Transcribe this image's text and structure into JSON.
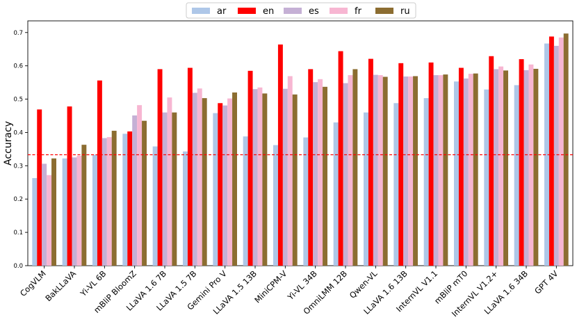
{
  "chart_data": {
    "type": "bar",
    "title": "",
    "xlabel": "",
    "ylabel": "Accuracy",
    "ylim": [
      0,
      0.735
    ],
    "yticks": [
      "0.0",
      "0.1",
      "0.2",
      "0.3",
      "0.4",
      "0.5",
      "0.6",
      "0.7"
    ],
    "reference_line": {
      "y": 0.333,
      "color": "#ff0000",
      "style": "dashed"
    },
    "legend_position": "top-center",
    "grid": false,
    "categories": [
      "CogVLM",
      "BakLLaVA",
      "Yi-VL 6B",
      "mBliP BloomZ",
      "LLaVA 1.6 7B",
      "LLaVA 1.5 7B",
      "Gemini Pro V",
      "LLaVA 1.5 13B",
      "MiniCPM-V",
      "Yi-VL 34B",
      "OmniLMM 12B",
      "Qwen-VL",
      "LLaVA 1.6 13B",
      "InternVL V1.1",
      "mBliP mT0",
      "InternVL V1.2+",
      "LLaVA 1.6 34B",
      "GPT 4V"
    ],
    "series": [
      {
        "name": "ar",
        "color": "#aec7e8",
        "values": [
          0.263,
          0.322,
          0.333,
          0.396,
          0.358,
          0.343,
          0.458,
          0.388,
          0.362,
          0.385,
          0.43,
          0.46,
          0.488,
          0.503,
          0.553,
          0.529,
          0.542,
          0.667
        ]
      },
      {
        "name": "en",
        "color": "#ff0000",
        "values": [
          0.469,
          0.478,
          0.556,
          0.403,
          0.59,
          0.594,
          0.488,
          0.585,
          0.664,
          0.59,
          0.644,
          0.621,
          0.608,
          0.61,
          0.594,
          0.629,
          0.62,
          0.688
        ]
      },
      {
        "name": "es",
        "color": "#c5b0d5",
        "values": [
          0.306,
          0.325,
          0.383,
          0.451,
          0.46,
          0.519,
          0.481,
          0.53,
          0.531,
          0.551,
          0.548,
          0.573,
          0.568,
          0.572,
          0.562,
          0.59,
          0.587,
          0.66
        ]
      },
      {
        "name": "fr",
        "color": "#f7b6d2",
        "values": [
          0.272,
          0.33,
          0.386,
          0.482,
          0.505,
          0.532,
          0.502,
          0.535,
          0.569,
          0.56,
          0.572,
          0.572,
          0.568,
          0.572,
          0.576,
          0.598,
          0.604,
          0.685
        ]
      },
      {
        "name": "ru",
        "color": "#8c6d31",
        "values": [
          0.322,
          0.363,
          0.405,
          0.435,
          0.46,
          0.503,
          0.52,
          0.517,
          0.514,
          0.537,
          0.59,
          0.567,
          0.569,
          0.574,
          0.577,
          0.586,
          0.591,
          0.697
        ]
      }
    ]
  }
}
